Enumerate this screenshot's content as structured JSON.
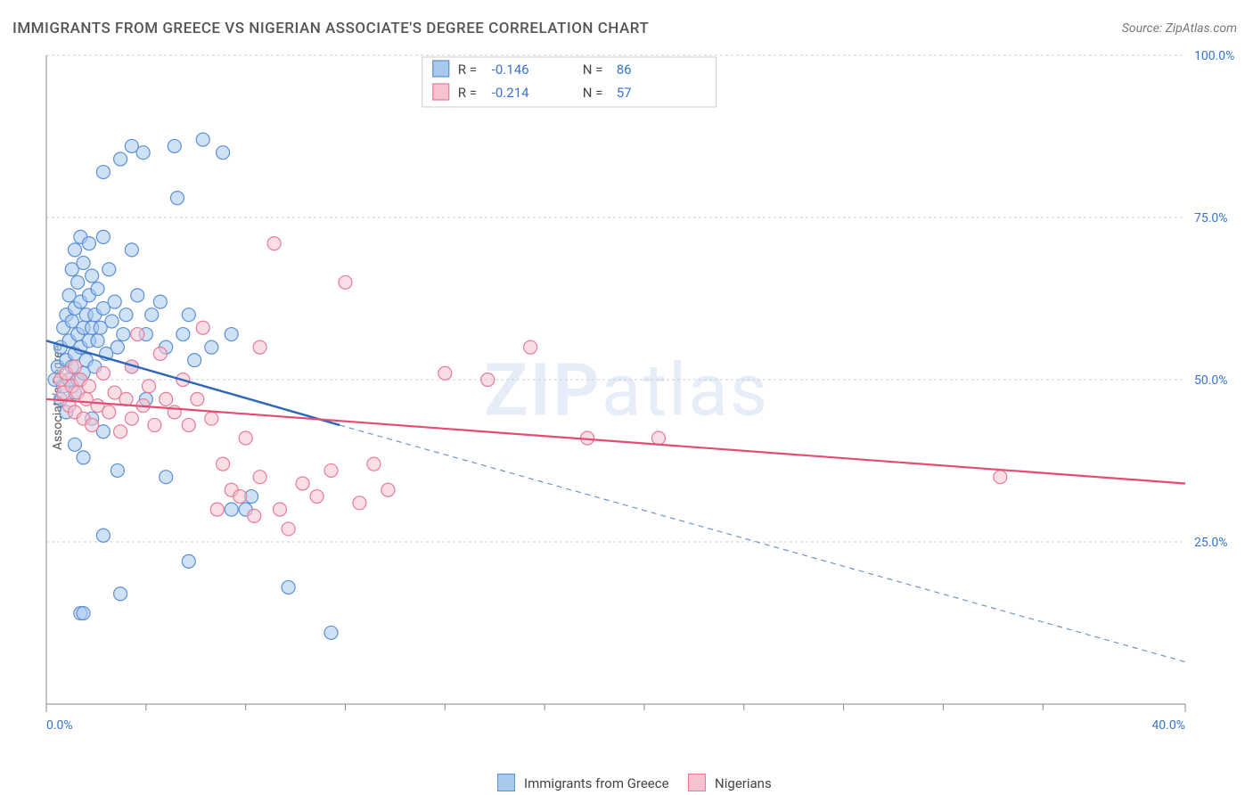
{
  "title": "IMMIGRANTS FROM GREECE VS NIGERIAN ASSOCIATE'S DEGREE CORRELATION CHART",
  "source_label": "Source: ",
  "source_value": "ZipAtlas.com",
  "y_axis_label": "Associate's Degree",
  "watermark_a": "ZIP",
  "watermark_b": "atlas",
  "chart": {
    "type": "scatter",
    "xlim": [
      0,
      40
    ],
    "ylim": [
      0,
      100
    ],
    "y_ticks": [
      25,
      50,
      75,
      100
    ],
    "y_tick_labels": [
      "25.0%",
      "50.0%",
      "75.0%",
      "100.0%"
    ],
    "x_ticks": [
      0,
      40
    ],
    "x_tick_labels": [
      "0.0%",
      "40.0%"
    ],
    "x_minor_ticks": [
      3.5,
      7,
      10.5,
      14,
      17.5,
      21,
      24.5,
      28,
      31.5,
      35
    ],
    "grid_color": "#cccccc",
    "axis_color": "#888888",
    "background_color": "#ffffff",
    "marker_radius": 7.5,
    "marker_opacity": 0.55,
    "series": [
      {
        "name": "Immigrants from Greece",
        "swatch_fill": "#a8c8ec",
        "swatch_stroke": "#5b8fd6",
        "marker_fill": "#a8c8ec",
        "marker_stroke": "#5b8fd6",
        "R": "-0.146",
        "N": "86",
        "trend": {
          "x1": 0,
          "y1": 56,
          "x2": 10.3,
          "y2": 43,
          "stroke": "#2f66b8",
          "width": 2.4
        },
        "trend_ext": {
          "x1": 10.3,
          "y1": 43,
          "x2": 40,
          "y2": 6.5,
          "stroke": "#6f95c9",
          "width": 1.2,
          "dash": "6 5"
        },
        "points": [
          [
            0.3,
            50
          ],
          [
            0.4,
            52
          ],
          [
            0.5,
            55
          ],
          [
            0.5,
            47
          ],
          [
            0.6,
            58
          ],
          [
            0.6,
            49
          ],
          [
            0.7,
            60
          ],
          [
            0.7,
            53
          ],
          [
            0.7,
            45
          ],
          [
            0.8,
            63
          ],
          [
            0.8,
            56
          ],
          [
            0.8,
            50
          ],
          [
            0.9,
            67
          ],
          [
            0.9,
            59
          ],
          [
            0.9,
            52
          ],
          [
            1.0,
            70
          ],
          [
            1.0,
            61
          ],
          [
            1.0,
            54
          ],
          [
            1.0,
            48
          ],
          [
            1.1,
            65
          ],
          [
            1.1,
            57
          ],
          [
            1.1,
            50
          ],
          [
            1.2,
            72
          ],
          [
            1.2,
            62
          ],
          [
            1.2,
            55
          ],
          [
            1.3,
            68
          ],
          [
            1.3,
            58
          ],
          [
            1.3,
            51
          ],
          [
            1.4,
            60
          ],
          [
            1.4,
            53
          ],
          [
            1.5,
            71
          ],
          [
            1.5,
            63
          ],
          [
            1.5,
            56
          ],
          [
            1.6,
            66
          ],
          [
            1.6,
            58
          ],
          [
            1.7,
            60
          ],
          [
            1.7,
            52
          ],
          [
            1.8,
            64
          ],
          [
            1.8,
            56
          ],
          [
            1.9,
            58
          ],
          [
            2.0,
            82
          ],
          [
            2.0,
            72
          ],
          [
            2.0,
            61
          ],
          [
            2.1,
            54
          ],
          [
            2.2,
            67
          ],
          [
            2.3,
            59
          ],
          [
            2.4,
            62
          ],
          [
            2.5,
            55
          ],
          [
            2.6,
            84
          ],
          [
            2.7,
            57
          ],
          [
            2.8,
            60
          ],
          [
            3.0,
            86
          ],
          [
            3.0,
            70
          ],
          [
            3.0,
            52
          ],
          [
            3.2,
            63
          ],
          [
            3.4,
            85
          ],
          [
            3.5,
            57
          ],
          [
            3.7,
            60
          ],
          [
            4.0,
            62
          ],
          [
            4.2,
            55
          ],
          [
            4.5,
            86
          ],
          [
            4.6,
            78
          ],
          [
            4.8,
            57
          ],
          [
            5.0,
            60
          ],
          [
            5.2,
            53
          ],
          [
            5.5,
            87
          ],
          [
            5.8,
            55
          ],
          [
            6.2,
            85
          ],
          [
            6.5,
            57
          ],
          [
            7.0,
            30
          ],
          [
            7.2,
            32
          ],
          [
            1.0,
            40
          ],
          [
            1.3,
            38
          ],
          [
            1.6,
            44
          ],
          [
            2.0,
            42
          ],
          [
            2.5,
            36
          ],
          [
            1.2,
            14
          ],
          [
            1.3,
            14
          ],
          [
            2.6,
            17
          ],
          [
            4.2,
            35
          ],
          [
            5.0,
            22
          ],
          [
            6.5,
            30
          ],
          [
            8.5,
            18
          ],
          [
            10.0,
            11
          ],
          [
            2.0,
            26
          ],
          [
            3.5,
            47
          ]
        ]
      },
      {
        "name": "Nigerians",
        "swatch_fill": "#f6c2cf",
        "swatch_stroke": "#e77b98",
        "marker_fill": "#f6c2cf",
        "marker_stroke": "#e77b98",
        "R": "-0.214",
        "N": "57",
        "trend": {
          "x1": 0,
          "y1": 47,
          "x2": 40,
          "y2": 34,
          "stroke": "#e34d74",
          "width": 2.2
        },
        "points": [
          [
            0.5,
            50
          ],
          [
            0.6,
            48
          ],
          [
            0.7,
            51
          ],
          [
            0.8,
            46
          ],
          [
            0.9,
            49
          ],
          [
            1.0,
            52
          ],
          [
            1.0,
            45
          ],
          [
            1.1,
            48
          ],
          [
            1.2,
            50
          ],
          [
            1.3,
            44
          ],
          [
            1.4,
            47
          ],
          [
            1.5,
            49
          ],
          [
            1.6,
            43
          ],
          [
            1.8,
            46
          ],
          [
            2.0,
            51
          ],
          [
            2.2,
            45
          ],
          [
            2.4,
            48
          ],
          [
            2.6,
            42
          ],
          [
            2.8,
            47
          ],
          [
            3.0,
            52
          ],
          [
            3.0,
            44
          ],
          [
            3.2,
            57
          ],
          [
            3.4,
            46
          ],
          [
            3.6,
            49
          ],
          [
            3.8,
            43
          ],
          [
            4.0,
            54
          ],
          [
            4.2,
            47
          ],
          [
            4.5,
            45
          ],
          [
            4.8,
            50
          ],
          [
            5.0,
            43
          ],
          [
            5.3,
            47
          ],
          [
            5.5,
            58
          ],
          [
            5.8,
            44
          ],
          [
            6.0,
            30
          ],
          [
            6.2,
            37
          ],
          [
            6.5,
            33
          ],
          [
            6.8,
            32
          ],
          [
            7.0,
            41
          ],
          [
            7.3,
            29
          ],
          [
            7.5,
            35
          ],
          [
            8.0,
            71
          ],
          [
            8.2,
            30
          ],
          [
            8.5,
            27
          ],
          [
            9.0,
            34
          ],
          [
            9.5,
            32
          ],
          [
            10.0,
            36
          ],
          [
            10.5,
            65
          ],
          [
            11.0,
            31
          ],
          [
            11.5,
            37
          ],
          [
            12.0,
            33
          ],
          [
            14.0,
            51
          ],
          [
            15.5,
            50
          ],
          [
            17.0,
            55
          ],
          [
            19.0,
            41
          ],
          [
            21.5,
            41
          ],
          [
            33.5,
            35
          ],
          [
            7.5,
            55
          ]
        ]
      }
    ],
    "legend": {
      "R_label": "R =",
      "N_label": "N ="
    }
  }
}
